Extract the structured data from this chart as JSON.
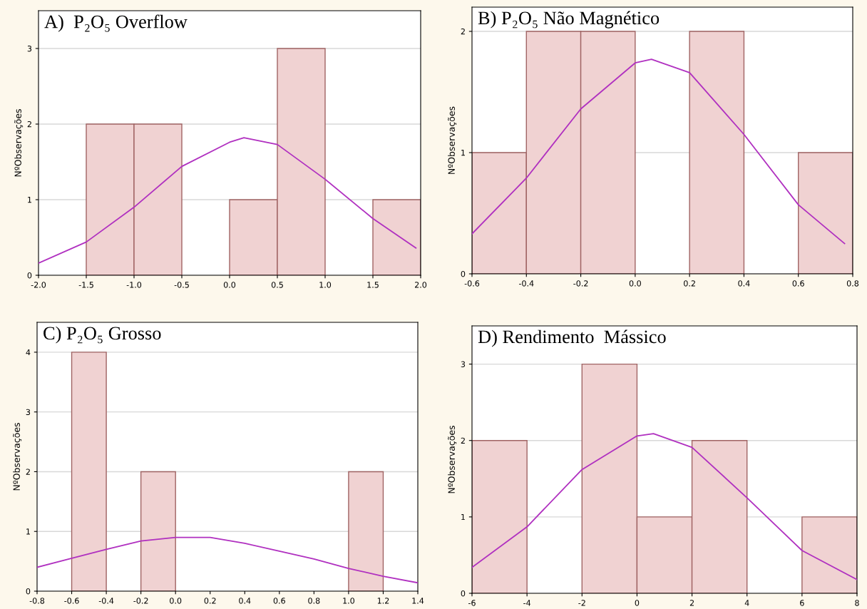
{
  "chart_data": [
    {
      "type": "histogram",
      "title": "A)  P₂O₅ Overflow",
      "ylabel": "NºObservações",
      "bins": [
        -2.0,
        -1.5,
        -1.0,
        -0.5,
        0.0,
        0.5,
        1.0,
        1.5,
        2.0
      ],
      "values": [
        0,
        2,
        2,
        0,
        1,
        3,
        0,
        1
      ],
      "color": "#f0d2d2",
      "xlim": [
        -2.0,
        2.0
      ],
      "xticks": [
        {
          "value": -2,
          "label": "-2.0"
        },
        -1.5,
        {
          "value": -1,
          "label": "-1.0"
        },
        -0.5,
        {
          "value": 0,
          "label": "0.0"
        },
        0.5,
        {
          "value": 1,
          "label": "1.0"
        },
        1.5,
        {
          "value": 2,
          "label": "2.0"
        }
      ],
      "ylim": [
        0,
        3.5
      ],
      "yticks": [
        0,
        1,
        2,
        3
      ],
      "grid": "y",
      "series": [
        {
          "type": "line",
          "color": "#b030c0",
          "x": [
            -2.0,
            -1.5,
            -1.0,
            -0.5,
            0.0,
            0.15,
            0.5,
            1.0,
            1.5,
            1.95
          ],
          "values": [
            0.16,
            0.44,
            0.9,
            1.44,
            1.76,
            1.82,
            1.73,
            1.27,
            0.75,
            0.36
          ]
        }
      ]
    },
    {
      "type": "histogram",
      "title": "B) P₂O₅ Não Magnético",
      "ylabel": "NºObservações",
      "bins": [
        -0.6,
        -0.4,
        -0.2,
        0.0,
        0.2,
        0.4,
        0.6,
        0.8
      ],
      "values": [
        1,
        2,
        2,
        0,
        2,
        0,
        1
      ],
      "color": "#f0d2d2",
      "xlim": [
        -0.6,
        0.8
      ],
      "xticks": [
        -0.6,
        -0.4,
        -0.2,
        {
          "value": 0,
          "label": "0.0"
        },
        0.2,
        0.4,
        0.6,
        0.8
      ],
      "ylim": [
        0,
        2.2
      ],
      "yticks": [
        0,
        1,
        2
      ],
      "grid": "y",
      "series": [
        {
          "type": "line",
          "color": "#b030c0",
          "x": [
            -0.6,
            -0.4,
            -0.2,
            0.0,
            0.06,
            0.2,
            0.4,
            0.6,
            0.77
          ],
          "values": [
            0.33,
            0.79,
            1.36,
            1.74,
            1.77,
            1.66,
            1.15,
            0.57,
            0.25
          ]
        }
      ]
    },
    {
      "type": "histogram",
      "title": "C) P₂O₅ Grosso",
      "ylabel": "NºObservações",
      "bins": [
        -0.8,
        -0.6,
        -0.4,
        -0.2,
        0.0,
        0.2,
        0.4,
        0.6,
        0.8,
        1.0,
        1.2,
        1.4
      ],
      "values": [
        0,
        4,
        0,
        2,
        0,
        0,
        0,
        0,
        0,
        2,
        0
      ],
      "color": "#f0d2d2",
      "xlim": [
        -0.8,
        1.4
      ],
      "xticks": [
        -0.8,
        -0.6,
        -0.4,
        -0.2,
        {
          "value": 0,
          "label": "0.0"
        },
        0.2,
        0.4,
        0.6,
        0.8,
        {
          "value": 1,
          "label": "1.0"
        },
        1.2,
        1.4
      ],
      "ylim": [
        0,
        4.5
      ],
      "yticks": [
        0,
        1,
        2,
        3,
        4
      ],
      "grid": "y",
      "series": [
        {
          "type": "line",
          "color": "#b030c0",
          "x": [
            -0.8,
            -0.6,
            -0.4,
            -0.2,
            0.0,
            0.2,
            0.4,
            0.6,
            0.8,
            1.0,
            1.2,
            1.4
          ],
          "values": [
            0.4,
            0.55,
            0.7,
            0.84,
            0.9,
            0.9,
            0.8,
            0.67,
            0.54,
            0.38,
            0.25,
            0.14
          ]
        }
      ]
    },
    {
      "type": "histogram",
      "title": "D) Rendimento  Mássico",
      "ylabel": "NºObservações",
      "bins": [
        -6,
        -4,
        -2,
        0,
        2,
        4,
        6,
        8
      ],
      "values": [
        2,
        0,
        3,
        1,
        2,
        0,
        1
      ],
      "color": "#f0d2d2",
      "xlim": [
        -6,
        8
      ],
      "xticks": [
        -6,
        -4,
        -2,
        0,
        2,
        4,
        6,
        8
      ],
      "ylim": [
        0,
        3.5
      ],
      "yticks": [
        0,
        1,
        2,
        3
      ],
      "grid": "y",
      "series": [
        {
          "type": "line",
          "color": "#b030c0",
          "x": [
            -6,
            -4,
            -2,
            0,
            0.6,
            2,
            4,
            6,
            8
          ],
          "values": [
            0.34,
            0.87,
            1.62,
            2.06,
            2.09,
            1.91,
            1.25,
            0.56,
            0.18
          ]
        }
      ]
    }
  ]
}
